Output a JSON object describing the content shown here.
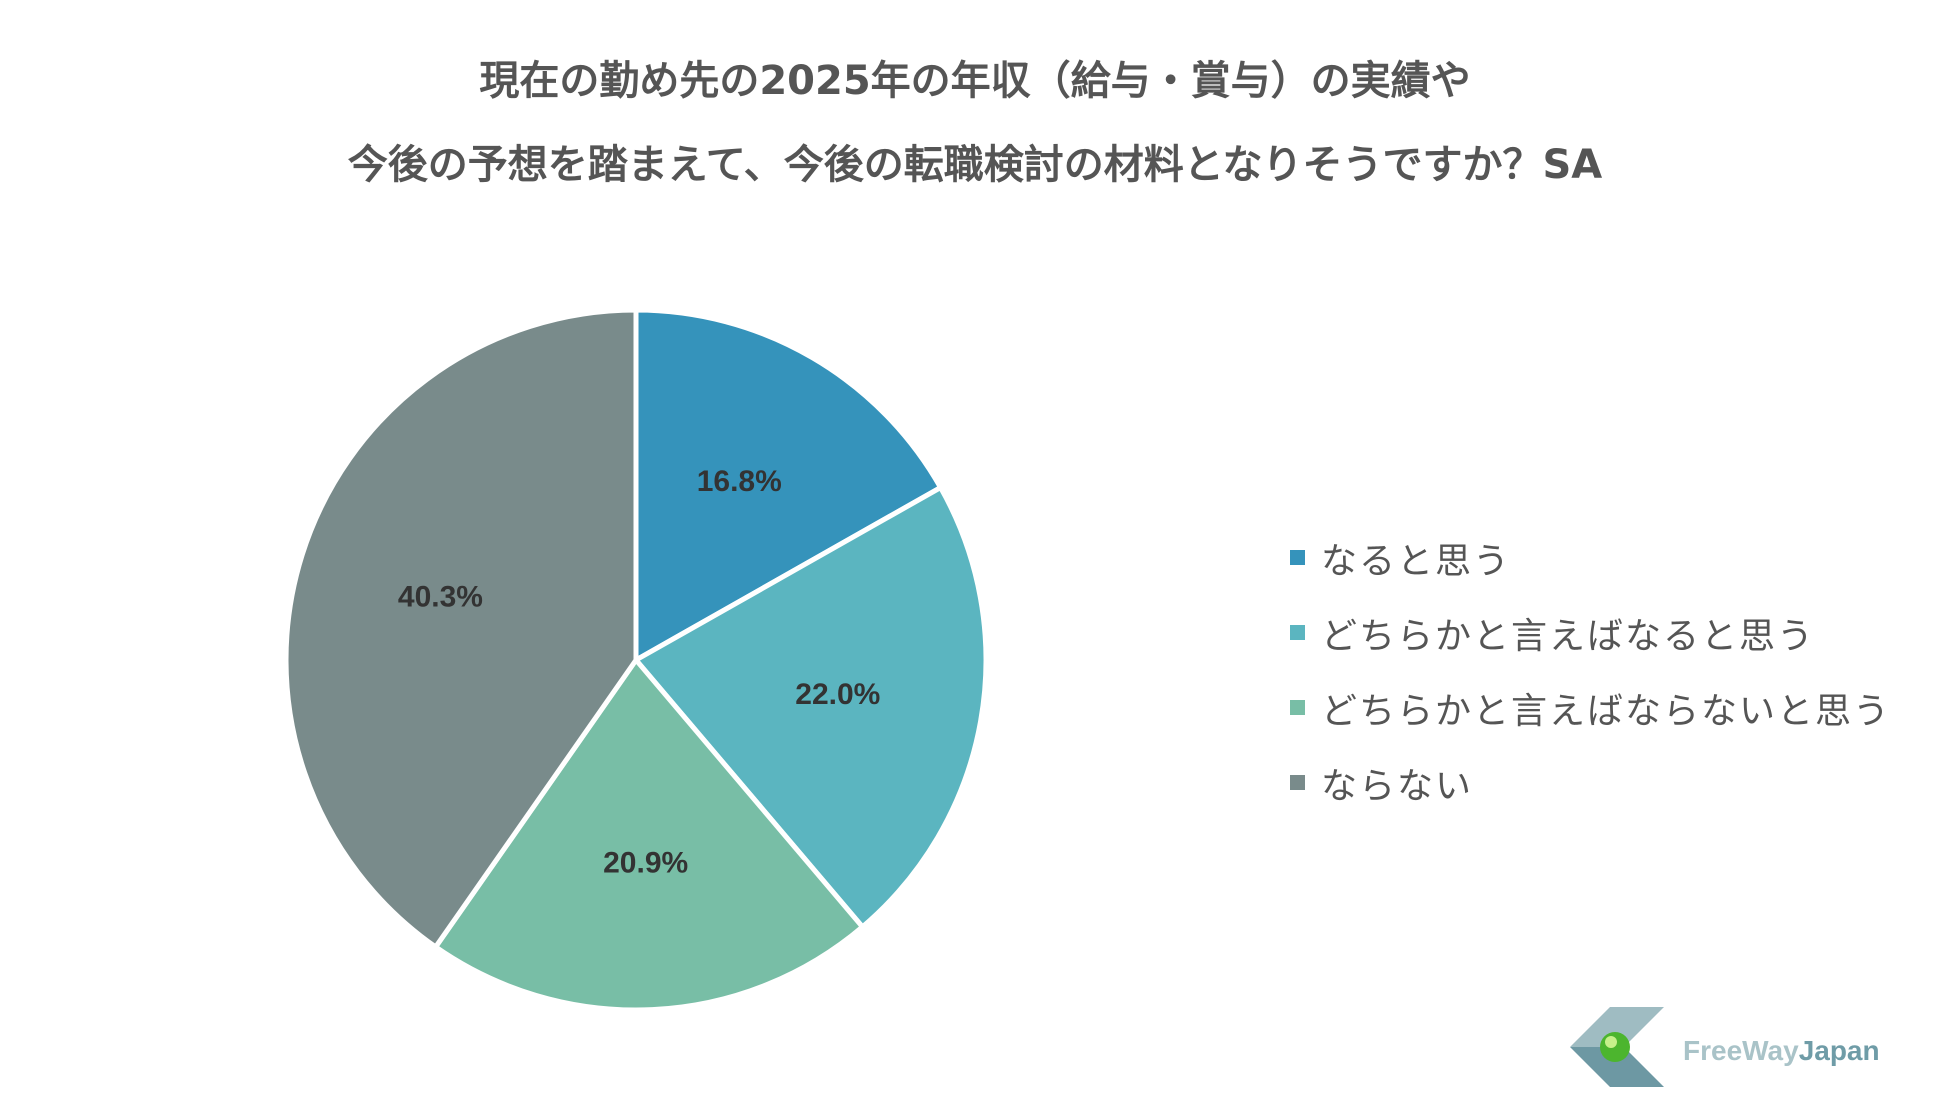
{
  "title": {
    "line1": "現在の勤め先の2025年の年収（給与・賞与）の実績や",
    "line2": "今後の予想を踏まえて、今後の転職検討の材料となりそうですか？SA"
  },
  "chart_data": {
    "type": "pie",
    "title": "現在の勤め先の2025年の年収（給与・賞与）の実績や 今後の予想を踏まえて、今後の転職検討の材料となりそうですか？SA",
    "categories": [
      "なると思う",
      "どちらかと言えばなると思う",
      "どちらかと言えばならないと思う",
      "ならない"
    ],
    "values": [
      16.8,
      22.0,
      20.9,
      40.3
    ],
    "labels": [
      "16.8%",
      "22.0%",
      "20.9%",
      "40.3%"
    ],
    "colors": [
      "#3593bb",
      "#5bb5c0",
      "#78bea6",
      "#798b8b"
    ],
    "legend_position": "right",
    "start_angle": "top",
    "direction": "clockwise"
  },
  "legend": {
    "items": [
      {
        "label": "なると思う",
        "color": "#3593bb"
      },
      {
        "label": "どちらかと言えばなると思う",
        "color": "#5bb5c0"
      },
      {
        "label": "どちらかと言えばならないと思う",
        "color": "#78bea6"
      },
      {
        "label": "ならない",
        "color": "#798b8b"
      }
    ]
  },
  "logo": {
    "part1": "FreeWay",
    "part2": "Japan"
  }
}
